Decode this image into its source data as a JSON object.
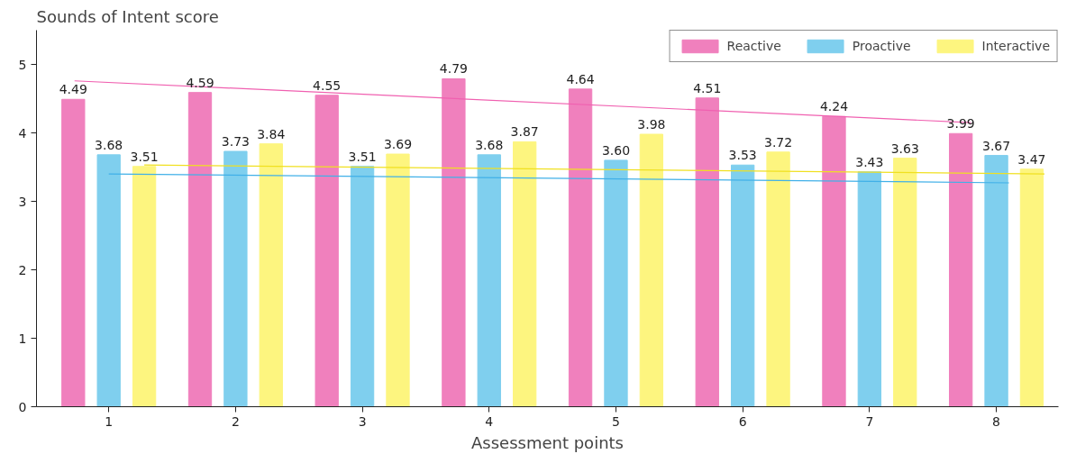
{
  "chart_data": {
    "type": "bar",
    "xlabel": "Assessment points",
    "ylabel": "Sounds of Intent score",
    "x": [
      1,
      2,
      3,
      4,
      5,
      6,
      7,
      8
    ],
    "xlim": [
      0.43,
      8.49
    ],
    "xticks": [
      1,
      2,
      3,
      4,
      5,
      6,
      7,
      8
    ],
    "ylim": [
      0,
      5.5
    ],
    "yticks": [
      0,
      1,
      2,
      3,
      4,
      5
    ],
    "grid": false,
    "legend": "top right",
    "series": [
      {
        "name": "Reactive",
        "color": "#f080bd",
        "values": [
          4.49,
          4.59,
          4.55,
          4.79,
          4.64,
          4.51,
          4.24,
          3.99
        ],
        "value_labels": [
          "4.49",
          "4.59",
          "4.55",
          "4.79",
          "4.64",
          "4.51",
          "4.24",
          "3.99"
        ]
      },
      {
        "name": "Proactive",
        "color": "#7fcfee",
        "values": [
          3.68,
          3.73,
          3.51,
          3.68,
          3.6,
          3.53,
          3.43,
          3.67
        ],
        "value_labels": [
          "3.68",
          "3.73",
          "3.51",
          "3.68",
          "3.60",
          "3.53",
          "3.43",
          "3.67"
        ]
      },
      {
        "name": "Interactive",
        "color": "#fdf57f",
        "values": [
          3.51,
          3.84,
          3.69,
          3.87,
          3.98,
          3.72,
          3.63,
          3.47
        ],
        "value_labels": [
          "3.51",
          "3.84",
          "3.69",
          "3.87",
          "3.98",
          "3.72",
          "3.63",
          "3.47"
        ]
      },
      {
        "type": "line",
        "color": "#f060b0",
        "x": [
          0.73,
          7.8
        ],
        "values": [
          4.76,
          4.15
        ]
      },
      {
        "type": "line",
        "color": "#40b0e8",
        "x": [
          1,
          8.1
        ],
        "values": [
          3.4,
          3.27
        ]
      },
      {
        "type": "line",
        "color": "#f0e020",
        "x": [
          1.28,
          8.38
        ],
        "values": [
          3.53,
          3.4
        ]
      }
    ]
  }
}
